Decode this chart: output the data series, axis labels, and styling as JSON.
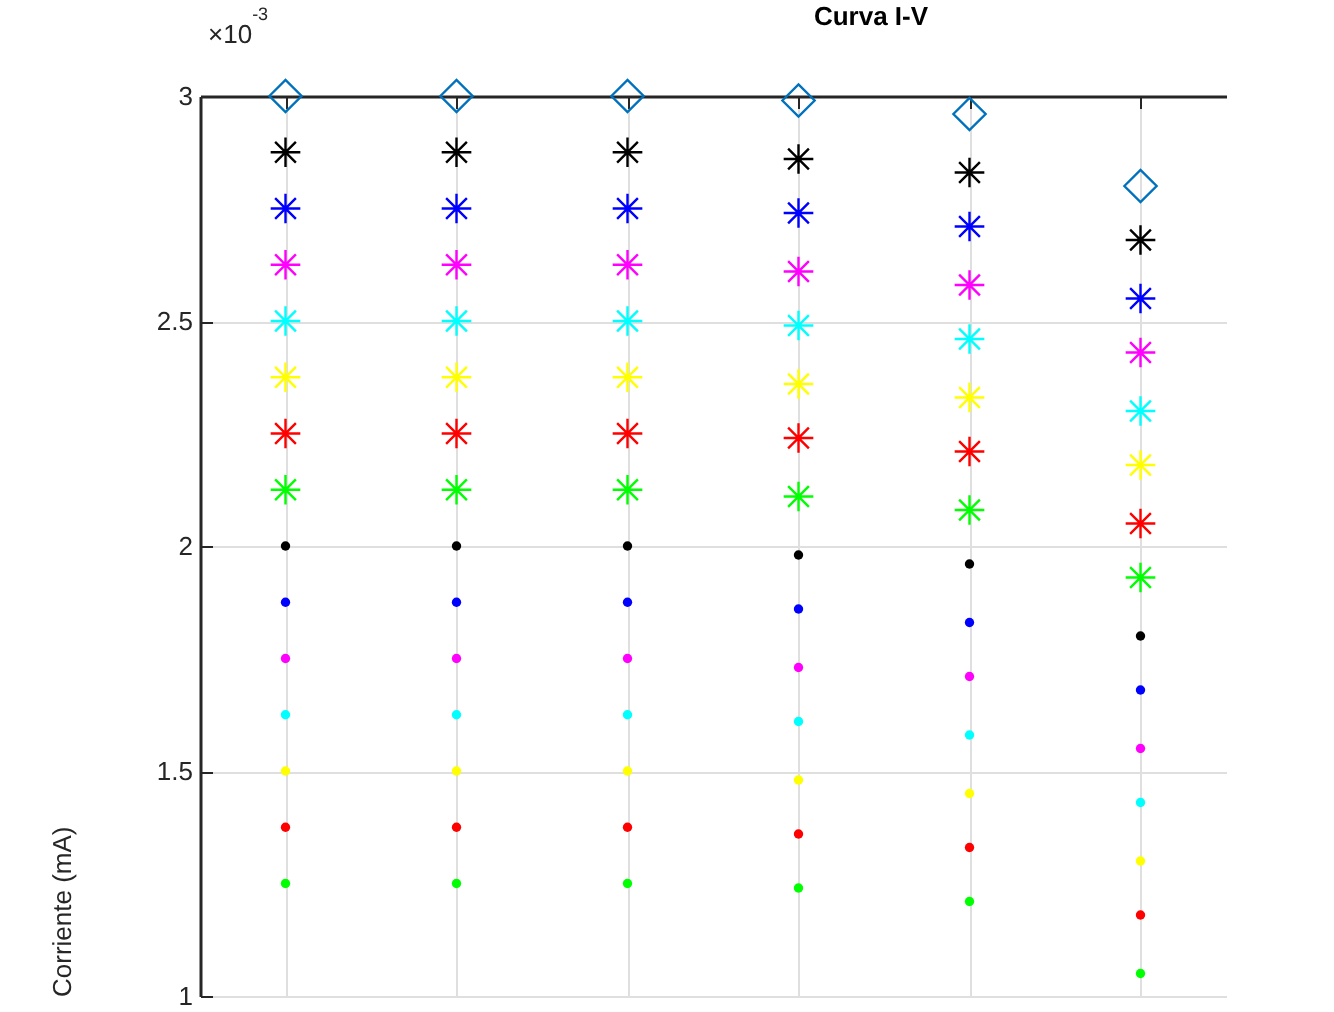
{
  "chart_data": {
    "type": "scatter",
    "title": "Curva I-V",
    "ylabel": "Corriente (mA)",
    "annotations": [
      "×10$^{-3}$"
    ],
    "categories": [
      null,
      null,
      null,
      null,
      null,
      null
    ],
    "ylim": [
      1,
      3
    ],
    "yticks": [
      1,
      1.5,
      2,
      2.5,
      3
    ],
    "grid": true,
    "series": [
      {
        "color": "#0072bd",
        "marker": "diamond",
        "values": [
          3.0,
          3.0,
          3.0,
          2.99,
          2.96,
          2.8
        ]
      },
      {
        "color": "#000000",
        "marker": "cross",
        "values": [
          2.875,
          2.875,
          2.875,
          2.86,
          2.83,
          2.68
        ]
      },
      {
        "color": "#0000ff",
        "marker": "cross",
        "values": [
          2.75,
          2.75,
          2.75,
          2.74,
          2.71,
          2.55
        ]
      },
      {
        "color": "#ff00ff",
        "marker": "cross",
        "values": [
          2.625,
          2.625,
          2.625,
          2.61,
          2.58,
          2.43
        ]
      },
      {
        "color": "#00ffff",
        "marker": "cross",
        "values": [
          2.5,
          2.5,
          2.5,
          2.49,
          2.46,
          2.3
        ]
      },
      {
        "color": "#ffff00",
        "marker": "cross",
        "values": [
          2.375,
          2.375,
          2.375,
          2.36,
          2.33,
          2.18
        ]
      },
      {
        "color": "#ff0000",
        "marker": "cross",
        "values": [
          2.25,
          2.25,
          2.25,
          2.24,
          2.21,
          2.05
        ]
      },
      {
        "color": "#00ff00",
        "marker": "cross",
        "values": [
          2.125,
          2.125,
          2.125,
          2.11,
          2.08,
          1.93
        ]
      },
      {
        "color": "#000000",
        "marker": "circle",
        "values": [
          2.0,
          2.0,
          2.0,
          1.98,
          1.96,
          1.8
        ]
      },
      {
        "color": "#0000ff",
        "marker": "circle",
        "values": [
          1.875,
          1.875,
          1.875,
          1.86,
          1.83,
          1.68
        ]
      },
      {
        "color": "#ff00ff",
        "marker": "circle",
        "values": [
          1.75,
          1.75,
          1.75,
          1.73,
          1.71,
          1.55
        ]
      },
      {
        "color": "#00ffff",
        "marker": "circle",
        "values": [
          1.625,
          1.625,
          1.625,
          1.61,
          1.58,
          1.43
        ]
      },
      {
        "color": "#ffff00",
        "marker": "circle",
        "values": [
          1.5,
          1.5,
          1.5,
          1.48,
          1.45,
          1.3
        ]
      },
      {
        "color": "#ff0000",
        "marker": "circle",
        "values": [
          1.375,
          1.375,
          1.375,
          1.36,
          1.33,
          1.18
        ]
      },
      {
        "color": "#00ff00",
        "marker": "circle",
        "values": [
          1.25,
          1.25,
          1.25,
          1.24,
          1.21,
          1.05
        ]
      }
    ]
  }
}
